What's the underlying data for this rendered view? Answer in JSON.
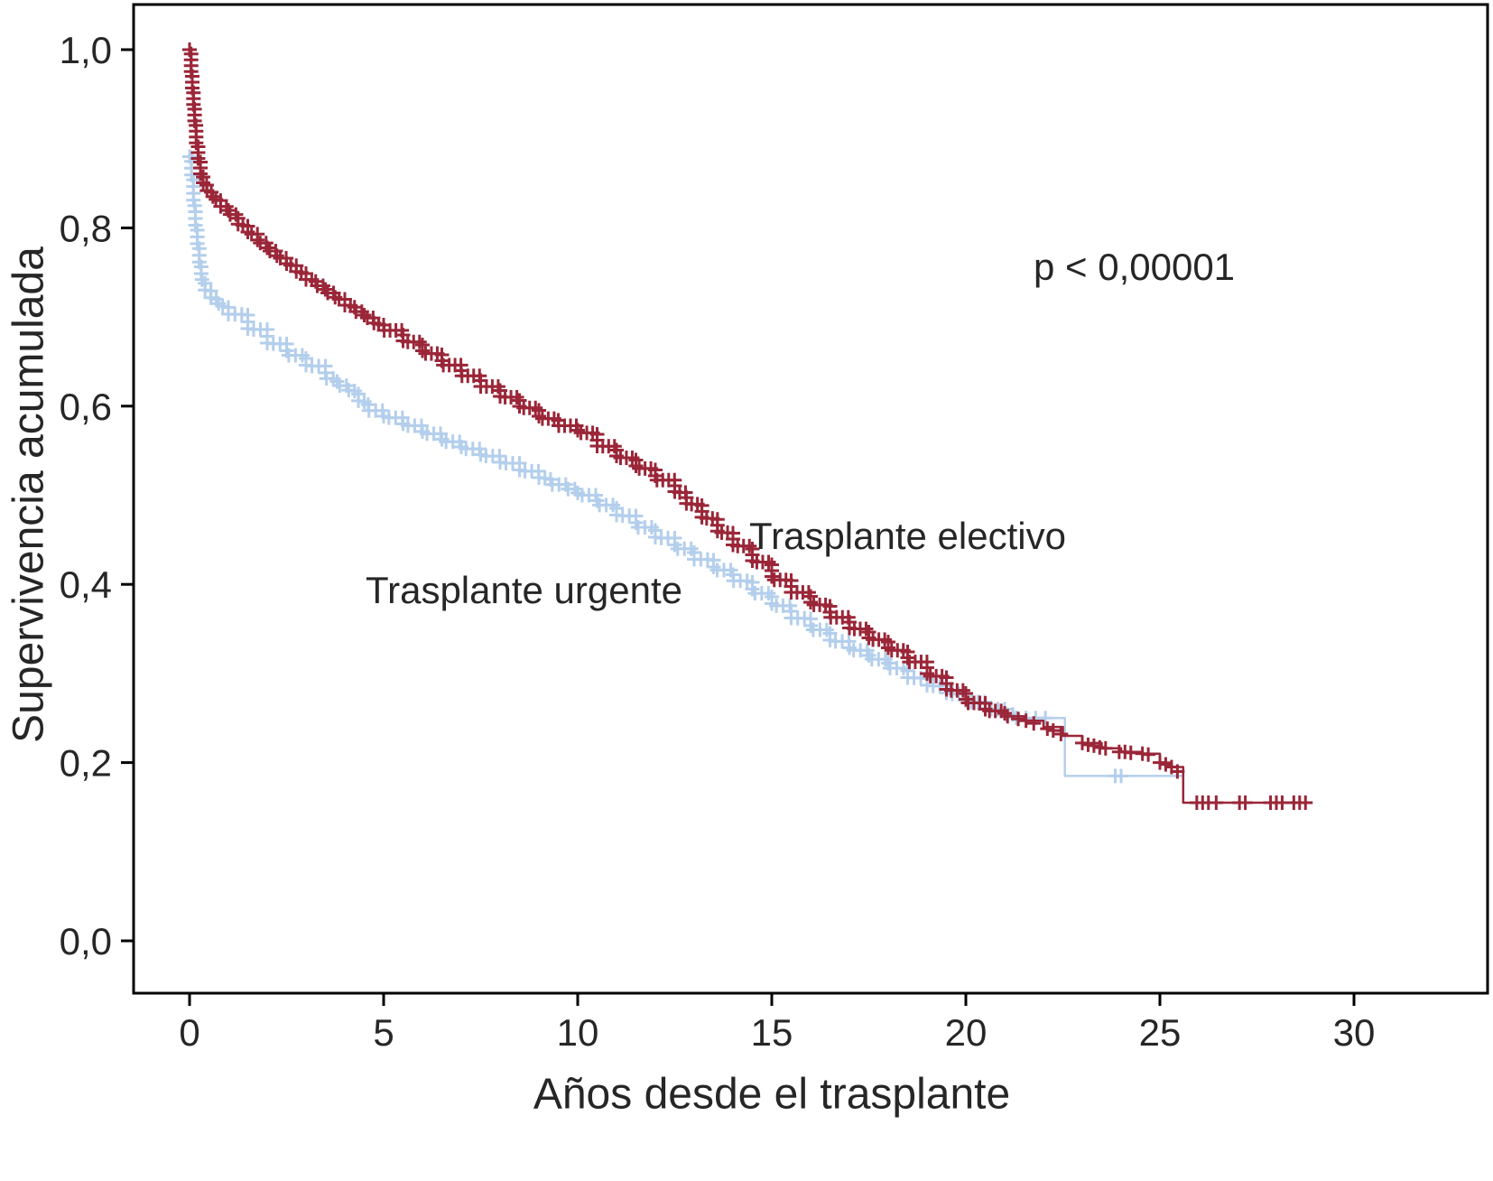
{
  "chart_data": {
    "type": "line",
    "subtype": "kaplan-meier-survival",
    "title": "",
    "xlabel": "Años desde el trasplante",
    "ylabel": "Supervivencia acumulada",
    "annotation": "p < 0,00001",
    "xlim": [
      -1.4,
      33.4
    ],
    "ylim": [
      -0.06,
      1.05
    ],
    "grid": false,
    "legend_position": "inline-labels",
    "x_ticks": [
      0,
      5,
      10,
      15,
      20,
      25,
      30
    ],
    "x_tick_labels": [
      "0",
      "5",
      "10",
      "15",
      "20",
      "25",
      "30"
    ],
    "y_ticks": [
      0.0,
      0.2,
      0.4,
      0.6,
      0.8,
      1.0
    ],
    "y_tick_labels": [
      "0,0",
      "0,2",
      "0,4",
      "0,6",
      "0,8",
      "1,0"
    ],
    "frame_color": "#000000",
    "text_color": "#262626",
    "series": [
      {
        "name": "Trasplante urgente",
        "color": "#b4cfec",
        "dense_until": 21.35,
        "points": [
          [
            0,
            0.88
          ],
          [
            0.05,
            0.855
          ],
          [
            0.1,
            0.825
          ],
          [
            0.15,
            0.8
          ],
          [
            0.2,
            0.778
          ],
          [
            0.25,
            0.758
          ],
          [
            0.3,
            0.742
          ],
          [
            0.4,
            0.73
          ],
          [
            0.55,
            0.72
          ],
          [
            0.75,
            0.712
          ],
          [
            1,
            0.703
          ],
          [
            1.5,
            0.686
          ],
          [
            2,
            0.67
          ],
          [
            2.5,
            0.657
          ],
          [
            3,
            0.645
          ],
          [
            3.5,
            0.631
          ],
          [
            3.8,
            0.623
          ],
          [
            4.1,
            0.617
          ],
          [
            4.35,
            0.605
          ],
          [
            4.6,
            0.595
          ],
          [
            5,
            0.587
          ],
          [
            5.5,
            0.578
          ],
          [
            6,
            0.569
          ],
          [
            6.5,
            0.56
          ],
          [
            7,
            0.552
          ],
          [
            7.5,
            0.544
          ],
          [
            8,
            0.536
          ],
          [
            8.5,
            0.527
          ],
          [
            9,
            0.519
          ],
          [
            9.3,
            0.512
          ],
          [
            9.7,
            0.507
          ],
          [
            10,
            0.5
          ],
          [
            10.5,
            0.489
          ],
          [
            11,
            0.477
          ],
          [
            11.5,
            0.464
          ],
          [
            12,
            0.452
          ],
          [
            12.5,
            0.44
          ],
          [
            13,
            0.428
          ],
          [
            13.5,
            0.416
          ],
          [
            14,
            0.404
          ],
          [
            14.5,
            0.39
          ],
          [
            15,
            0.376
          ],
          [
            15.5,
            0.362
          ],
          [
            16,
            0.349
          ],
          [
            16.5,
            0.336
          ],
          [
            17,
            0.326
          ],
          [
            17.5,
            0.316
          ],
          [
            18,
            0.306
          ],
          [
            18.5,
            0.295
          ],
          [
            19,
            0.286
          ],
          [
            19.5,
            0.277
          ],
          [
            20,
            0.268
          ],
          [
            20.5,
            0.26
          ],
          [
            21,
            0.254
          ],
          [
            21.3,
            0.25
          ],
          [
            22.5,
            0.25
          ],
          [
            22.55,
            0.185
          ],
          [
            25.6,
            0.185
          ]
        ],
        "censor_marks": [
          [
            21.55,
            0.25
          ],
          [
            21.8,
            0.25
          ],
          [
            22.05,
            0.25
          ],
          [
            23.85,
            0.185
          ],
          [
            24.0,
            0.185
          ]
        ]
      },
      {
        "name": "Trasplante electivo",
        "color": "#9a2638",
        "dense_until": 21.2,
        "points": [
          [
            0,
            1.0
          ],
          [
            0.04,
            0.975
          ],
          [
            0.07,
            0.955
          ],
          [
            0.1,
            0.935
          ],
          [
            0.13,
            0.915
          ],
          [
            0.17,
            0.895
          ],
          [
            0.22,
            0.875
          ],
          [
            0.28,
            0.858
          ],
          [
            0.35,
            0.848
          ],
          [
            0.45,
            0.84
          ],
          [
            0.6,
            0.832
          ],
          [
            0.8,
            0.824
          ],
          [
            1,
            0.815
          ],
          [
            1.25,
            0.803
          ],
          [
            1.5,
            0.793
          ],
          [
            1.75,
            0.783
          ],
          [
            2,
            0.774
          ],
          [
            2.25,
            0.766
          ],
          [
            2.5,
            0.758
          ],
          [
            2.75,
            0.75
          ],
          [
            3,
            0.742
          ],
          [
            3.25,
            0.735
          ],
          [
            3.5,
            0.727
          ],
          [
            3.75,
            0.72
          ],
          [
            4,
            0.713
          ],
          [
            4.25,
            0.706
          ],
          [
            4.5,
            0.699
          ],
          [
            4.75,
            0.692
          ],
          [
            5,
            0.685
          ],
          [
            5.5,
            0.672
          ],
          [
            6,
            0.659
          ],
          [
            6.5,
            0.646
          ],
          [
            7,
            0.634
          ],
          [
            7.5,
            0.622
          ],
          [
            8,
            0.61
          ],
          [
            8.5,
            0.598
          ],
          [
            9,
            0.586
          ],
          [
            9.5,
            0.578
          ],
          [
            10,
            0.57
          ],
          [
            10.5,
            0.555
          ],
          [
            11,
            0.542
          ],
          [
            11.5,
            0.53
          ],
          [
            12,
            0.517
          ],
          [
            12.5,
            0.503
          ],
          [
            12.8,
            0.49
          ],
          [
            13.2,
            0.474
          ],
          [
            13.6,
            0.458
          ],
          [
            14,
            0.443
          ],
          [
            14.5,
            0.425
          ],
          [
            15,
            0.405
          ],
          [
            15.5,
            0.391
          ],
          [
            16,
            0.377
          ],
          [
            16.5,
            0.363
          ],
          [
            17,
            0.35
          ],
          [
            17.5,
            0.338
          ],
          [
            18,
            0.326
          ],
          [
            18.5,
            0.313
          ],
          [
            19,
            0.297
          ],
          [
            19.5,
            0.281
          ],
          [
            20,
            0.267
          ],
          [
            20.5,
            0.258
          ],
          [
            21,
            0.252
          ],
          [
            21.5,
            0.247
          ],
          [
            22,
            0.24
          ],
          [
            22.5,
            0.23
          ],
          [
            23,
            0.222
          ],
          [
            23.5,
            0.216
          ],
          [
            24,
            0.212
          ],
          [
            24.5,
            0.21
          ],
          [
            25,
            0.2
          ],
          [
            25.3,
            0.195
          ],
          [
            25.6,
            0.155
          ],
          [
            28.85,
            0.155
          ]
        ],
        "censor_marks": [
          [
            21.35,
            0.249
          ],
          [
            21.55,
            0.247
          ],
          [
            21.75,
            0.244
          ],
          [
            22.1,
            0.238
          ],
          [
            22.25,
            0.236
          ],
          [
            22.45,
            0.232
          ],
          [
            23.0,
            0.222
          ],
          [
            23.15,
            0.22
          ],
          [
            23.3,
            0.219
          ],
          [
            23.45,
            0.217
          ],
          [
            23.6,
            0.216
          ],
          [
            23.95,
            0.212
          ],
          [
            24.1,
            0.212
          ],
          [
            24.25,
            0.211
          ],
          [
            24.55,
            0.21
          ],
          [
            24.7,
            0.209
          ],
          [
            25.0,
            0.2
          ],
          [
            25.15,
            0.198
          ],
          [
            25.3,
            0.195
          ],
          [
            25.45,
            0.19
          ],
          [
            25.95,
            0.155
          ],
          [
            26.1,
            0.155
          ],
          [
            26.25,
            0.155
          ],
          [
            26.45,
            0.155
          ],
          [
            27.05,
            0.155
          ],
          [
            27.2,
            0.155
          ],
          [
            27.85,
            0.155
          ],
          [
            28.0,
            0.155
          ],
          [
            28.15,
            0.155
          ],
          [
            28.45,
            0.155
          ],
          [
            28.6,
            0.155
          ],
          [
            28.75,
            0.155
          ]
        ]
      }
    ]
  }
}
